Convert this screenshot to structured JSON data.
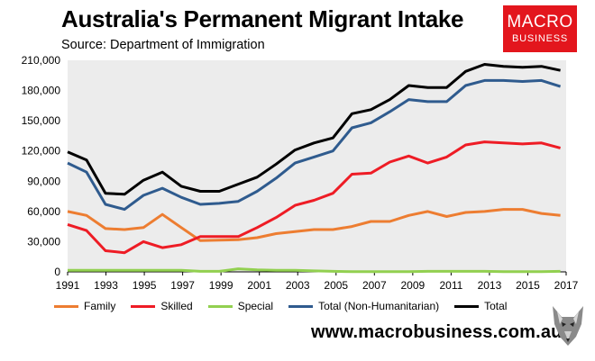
{
  "header": {
    "title": "Australia's Permanent Migrant Intake",
    "subtitle": "Source: Department of Immigration"
  },
  "logo": {
    "line1": "MACRO",
    "line2": "BUSINESS"
  },
  "footer": {
    "website": "www.macrobusiness.com.au"
  },
  "chart_data": {
    "type": "line",
    "title": "Australia's Permanent Migrant Intake",
    "subtitle": "Source: Department of Immigration",
    "x": [
      1991,
      1992,
      1993,
      1994,
      1995,
      1996,
      1997,
      1998,
      1999,
      2000,
      2001,
      2002,
      2003,
      2004,
      2005,
      2006,
      2007,
      2008,
      2009,
      2010,
      2011,
      2012,
      2013,
      2014,
      2015,
      2016,
      2017
    ],
    "x_ticks": [
      1991,
      1993,
      1995,
      1997,
      1999,
      2001,
      2003,
      2005,
      2007,
      2009,
      2011,
      2013,
      2015,
      2017
    ],
    "x_tick_labels": [
      "1991",
      "1993",
      "1995",
      "1997",
      "1999",
      "2001",
      "2003",
      "2005",
      "2007",
      "2009",
      "2011",
      "2013",
      "2015",
      "2017"
    ],
    "xlim": [
      1991,
      2017
    ],
    "ylim": [
      0,
      210000
    ],
    "y_ticks": [
      0,
      30000,
      60000,
      90000,
      120000,
      150000,
      180000,
      210000
    ],
    "y_tick_labels": [
      "0",
      "30,000",
      "60,000",
      "90,000",
      "120,000",
      "150,000",
      "180,000",
      "210,000"
    ],
    "grid": false,
    "legend_position": "bottom",
    "plot_background": "#ececec",
    "series": [
      {
        "name": "Family",
        "color": "#ed7d31",
        "x_start": 1991,
        "x_end": 2016.7,
        "values": [
          60000,
          56000,
          43000,
          42000,
          44000,
          57000,
          44000,
          31000,
          31500,
          32000,
          34000,
          38000,
          40000,
          42000,
          42000,
          45000,
          50000,
          50000,
          56000,
          60000,
          55000,
          59000,
          60000,
          62000,
          62000,
          58000,
          56000
        ]
      },
      {
        "name": "Skilled",
        "color": "#ee1c25",
        "x_start": 1991,
        "x_end": 2016.7,
        "values": [
          47000,
          41000,
          21000,
          19000,
          30000,
          24000,
          27000,
          35000,
          35000,
          35000,
          44000,
          54000,
          66000,
          71000,
          78000,
          97000,
          98000,
          109000,
          115000,
          108000,
          114000,
          126000,
          129000,
          128000,
          127000,
          128000,
          123000
        ]
      },
      {
        "name": "Special",
        "color": "#92d050",
        "x_start": 1991,
        "x_end": 2016.7,
        "values": [
          1500,
          1500,
          1500,
          1500,
          1500,
          1500,
          1500,
          500,
          500,
          3000,
          2000,
          1500,
          1500,
          1000,
          500,
          300,
          300,
          300,
          300,
          500,
          500,
          500,
          500,
          300,
          300,
          300,
          500
        ]
      },
      {
        "name": "Total (Non-Humanitarian)",
        "color": "#2f5b8e",
        "x_start": 1991,
        "x_end": 2016.7,
        "values": [
          108000,
          99000,
          67000,
          62000,
          76000,
          83000,
          74000,
          67000,
          68000,
          70000,
          80000,
          93000,
          108000,
          114000,
          120000,
          143000,
          148000,
          159000,
          171000,
          169000,
          169000,
          185000,
          190000,
          190000,
          189000,
          190000,
          184000
        ]
      },
      {
        "name": "Total",
        "color": "#000000",
        "x_start": 1991,
        "x_end": 2016.7,
        "values": [
          119000,
          111000,
          78000,
          77000,
          91000,
          99000,
          85000,
          80000,
          80000,
          87000,
          94000,
          107000,
          121000,
          128000,
          133000,
          157000,
          161000,
          171000,
          185000,
          183000,
          183000,
          199000,
          206000,
          204000,
          203000,
          204000,
          200000
        ]
      }
    ]
  },
  "legend": {
    "items": [
      {
        "label": "Family",
        "color": "#ed7d31"
      },
      {
        "label": "Skilled",
        "color": "#ee1c25"
      },
      {
        "label": "Special",
        "color": "#92d050"
      },
      {
        "label": "Total (Non-Humanitarian)",
        "color": "#2f5b8e"
      },
      {
        "label": "Total",
        "color": "#000000"
      }
    ]
  },
  "icons": {
    "wolf": "wolf-head-icon"
  }
}
